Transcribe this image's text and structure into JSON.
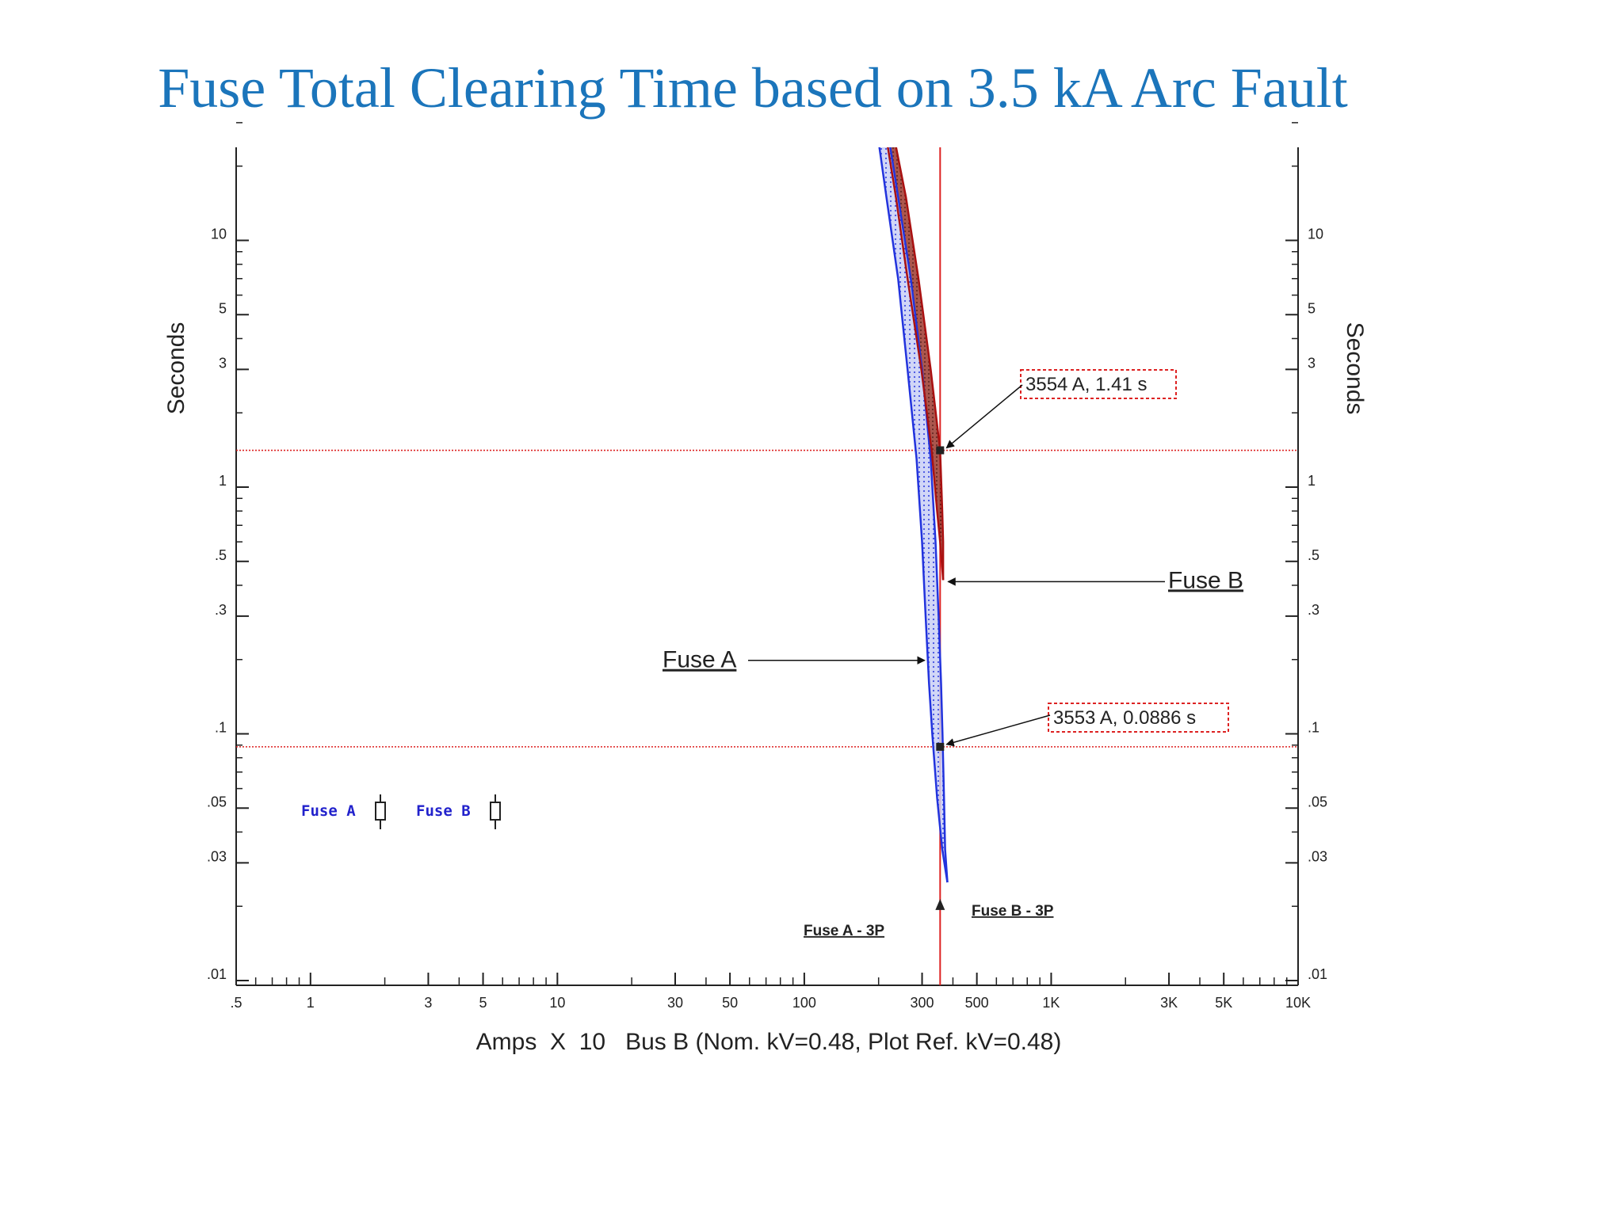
{
  "slide": {
    "title": "Fuse Total Clearing Time based on 3.5 kA Arc Fault"
  },
  "chart_data": {
    "type": "line",
    "title": "Fuse Total Clearing Time based on 3.5 kA Arc Fault",
    "xscale": "log",
    "yscale": "log",
    "xlim": [
      0.5,
      10000
    ],
    "ylim": [
      0.01,
      30
    ],
    "xlabel": "Amps  X  10   Bus B (Nom. kV=0.48, Plot Ref. kV=0.48)",
    "ylabel": "Seconds",
    "ylabel_right": "Seconds",
    "x_ticks": [
      {
        "value": 0.5,
        "label": ".5"
      },
      {
        "value": 1,
        "label": "1"
      },
      {
        "value": 3,
        "label": "3"
      },
      {
        "value": 5,
        "label": "5"
      },
      {
        "value": 10,
        "label": "10"
      },
      {
        "value": 30,
        "label": "30"
      },
      {
        "value": 50,
        "label": "50"
      },
      {
        "value": 100,
        "label": "100"
      },
      {
        "value": 300,
        "label": "300"
      },
      {
        "value": 500,
        "label": "500"
      },
      {
        "value": 1000,
        "label": "1K"
      },
      {
        "value": 3000,
        "label": "3K"
      },
      {
        "value": 5000,
        "label": "5K"
      },
      {
        "value": 10000,
        "label": "10K"
      }
    ],
    "y_ticks": [
      {
        "value": 0.01,
        "label": ".01"
      },
      {
        "value": 0.03,
        "label": ".03"
      },
      {
        "value": 0.05,
        "label": ".05"
      },
      {
        "value": 0.1,
        "label": ".1"
      },
      {
        "value": 0.3,
        "label": ".3"
      },
      {
        "value": 0.5,
        "label": ".5"
      },
      {
        "value": 1,
        "label": "1"
      },
      {
        "value": 3,
        "label": "3"
      },
      {
        "value": 5,
        "label": "5"
      },
      {
        "value": 10,
        "label": "10"
      }
    ],
    "series": [
      {
        "name": "Fuse A",
        "color": "#2233dd",
        "fill": "#9aa4ee",
        "min_curve": [
          [
            195,
            30
          ],
          [
            215,
            15
          ],
          [
            240,
            7
          ],
          [
            262,
            3
          ],
          [
            285,
            1.3
          ],
          [
            300,
            0.6
          ],
          [
            310,
            0.3
          ],
          [
            320,
            0.16
          ],
          [
            330,
            0.1
          ],
          [
            345,
            0.055
          ],
          [
            362,
            0.034
          ],
          [
            380,
            0.025
          ]
        ],
        "max_curve": [
          [
            215,
            30
          ],
          [
            240,
            15
          ],
          [
            270,
            7
          ],
          [
            300,
            3
          ],
          [
            325,
            1.3
          ],
          [
            340,
            0.6
          ],
          [
            350,
            0.3
          ],
          [
            358,
            0.16
          ],
          [
            363,
            0.1
          ],
          [
            368,
            0.055
          ],
          [
            372,
            0.034
          ],
          [
            380,
            0.025
          ]
        ]
      },
      {
        "name": "Fuse B",
        "color": "#aa1111",
        "fill": "#7a2a22",
        "min_curve": [
          [
            210,
            30
          ],
          [
            235,
            15
          ],
          [
            262,
            7
          ],
          [
            298,
            3
          ],
          [
            328,
            1.41
          ],
          [
            345,
            0.8
          ],
          [
            355,
            0.6
          ],
          [
            365,
            0.42
          ]
        ],
        "max_curve": [
          [
            225,
            30
          ],
          [
            258,
            15
          ],
          [
            290,
            7
          ],
          [
            325,
            3
          ],
          [
            355,
            1.41
          ],
          [
            362,
            0.8
          ],
          [
            365,
            0.6
          ],
          [
            365,
            0.42
          ]
        ]
      }
    ],
    "reference_lines": {
      "vertical_x": 355,
      "horizontal_y": [
        1.41,
        0.0886
      ],
      "color": "#dd2222"
    },
    "annotations": [
      {
        "text": "3554 A, 1.41 s",
        "x": 355,
        "y": 1.41
      },
      {
        "text": "3553 A, 0.0886 s",
        "x": 355,
        "y": 0.0886
      }
    ],
    "curve_labels": [
      {
        "text": "Fuse B",
        "x": 355,
        "y": 0.42
      },
      {
        "text": "Fuse A",
        "x": 312,
        "y": 0.2
      }
    ],
    "fault_markers": [
      {
        "text": "Fuse A - 3P",
        "x": 355,
        "y": 0.0205
      },
      {
        "text": "Fuse B - 3P",
        "x": 355,
        "y": 0.0205
      }
    ],
    "legend": {
      "position": "bottom-left",
      "items": [
        "Fuse A",
        "Fuse B"
      ]
    },
    "grid": false
  }
}
